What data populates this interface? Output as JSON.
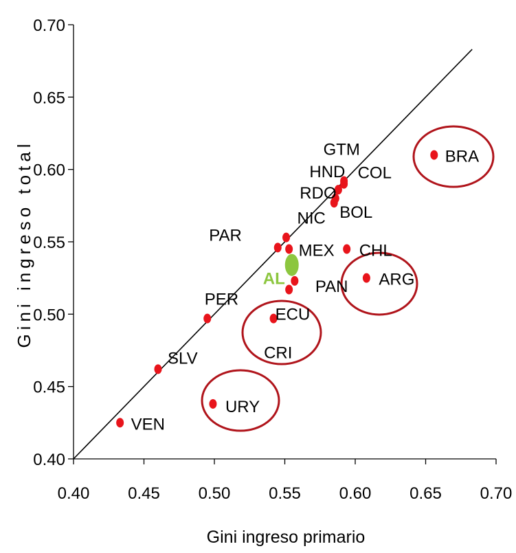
{
  "chart_data": {
    "type": "scatter",
    "xlabel": "Gini ingreso primario",
    "ylabel": "Gini ingreso total",
    "xlim": [
      0.4,
      0.7
    ],
    "ylim": [
      0.4,
      0.7
    ],
    "x_ticks": [
      "0.40",
      "0.45",
      "0.50",
      "0.55",
      "0.60",
      "0.65",
      "0.70"
    ],
    "y_ticks": [
      "0.40",
      "0.45",
      "0.50",
      "0.55",
      "0.60",
      "0.65",
      "0.70"
    ],
    "reference_line": {
      "type": "identity",
      "from": [
        0.4,
        0.4
      ],
      "to": [
        0.683,
        0.683
      ]
    },
    "grid": false,
    "legend": "none",
    "colors": {
      "point": "#e8141b",
      "highlight": "#8cc63f",
      "circle": "#b0141b",
      "line": "#000000"
    },
    "points": [
      {
        "label": "VEN",
        "x": 0.433,
        "y": 0.425
      },
      {
        "label": "SLV",
        "x": 0.46,
        "y": 0.462
      },
      {
        "label": "PER",
        "x": 0.495,
        "y": 0.497
      },
      {
        "label": "URY",
        "x": 0.499,
        "y": 0.438
      },
      {
        "label": "CRI",
        "x": 0.542,
        "y": 0.497
      },
      {
        "label": "PAR",
        "x": 0.545,
        "y": 0.546
      },
      {
        "label": "NIC",
        "x": 0.551,
        "y": 0.553
      },
      {
        "label": "MEX",
        "x": 0.553,
        "y": 0.545
      },
      {
        "label": "ECU",
        "x": 0.553,
        "y": 0.517
      },
      {
        "label": "PAN",
        "x": 0.557,
        "y": 0.523
      },
      {
        "label": "RDO",
        "x": 0.586,
        "y": 0.58
      },
      {
        "label": "BOL",
        "x": 0.585,
        "y": 0.577
      },
      {
        "label": "HND",
        "x": 0.588,
        "y": 0.586
      },
      {
        "label": "GTM",
        "x": 0.592,
        "y": 0.592
      },
      {
        "label": "COL",
        "x": 0.592,
        "y": 0.59
      },
      {
        "label": "CHL",
        "x": 0.594,
        "y": 0.545
      },
      {
        "label": "ARG",
        "x": 0.608,
        "y": 0.525
      },
      {
        "label": "BRA",
        "x": 0.656,
        "y": 0.61
      }
    ],
    "highlight_point": {
      "label": "AL",
      "x": 0.555,
      "y": 0.534
    },
    "circled": [
      "BRA",
      "ARG",
      "CRI",
      "URY"
    ]
  }
}
